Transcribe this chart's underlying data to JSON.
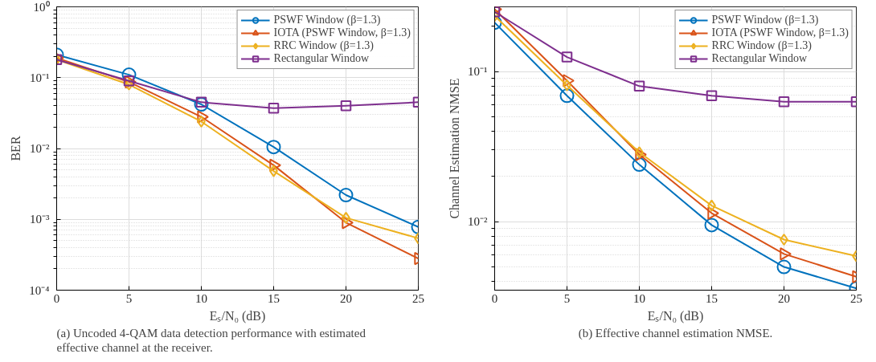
{
  "chart_data": [
    {
      "type": "line",
      "ylabel": "BER",
      "xlabel": "Eₛ/N₀ (dB)",
      "x": [
        0,
        5,
        10,
        15,
        20,
        25
      ],
      "xlim": [
        0,
        25
      ],
      "xticks": [
        0,
        5,
        10,
        15,
        20,
        25
      ],
      "log": "y",
      "ylim": [
        0.0001,
        1
      ],
      "yticks": [
        {
          "value": 0.0001,
          "label": "10⁻⁴"
        },
        {
          "value": 0.001,
          "label": "10⁻³"
        },
        {
          "value": 0.01,
          "label": "10⁻²"
        },
        {
          "value": 0.1,
          "label": "10⁻¹"
        },
        {
          "value": 1,
          "label": "10⁰"
        }
      ],
      "grid": true,
      "legend": "top right",
      "line_style": "solid",
      "annotations": [
        "(a) Uncoded 4-QAM data detection performance with estimated effective channel at the receiver."
      ],
      "series": [
        {
          "name": "PSWF Window (β=1.3)",
          "color": "#0072bd",
          "marker": "circle",
          "values": [
            0.21,
            0.11,
            0.042,
            0.0105,
            0.0022,
            0.00078
          ]
        },
        {
          "name": "IOTA (PSWF Window, β=1.3)",
          "color": "#d95319",
          "marker": "triangle",
          "values": [
            0.19,
            0.087,
            0.028,
            0.0058,
            0.0009,
            0.00028
          ]
        },
        {
          "name": "RRC Window (β=1.3)",
          "color": "#edb120",
          "marker": "diamond",
          "values": [
            0.18,
            0.08,
            0.024,
            0.0048,
            0.00105,
            0.00054
          ]
        },
        {
          "name": "Rectangular Window",
          "color": "#7e2f8e",
          "marker": "square",
          "values": [
            0.18,
            0.09,
            0.045,
            0.037,
            0.04,
            0.045
          ]
        }
      ]
    },
    {
      "type": "line",
      "ylabel": "Channel Estimation NMSE",
      "xlabel": "Eₛ/N₀ (dB)",
      "x": [
        0,
        5,
        10,
        15,
        20,
        25
      ],
      "xlim": [
        0,
        25
      ],
      "xticks": [
        0,
        5,
        10,
        15,
        20,
        25
      ],
      "log": "y",
      "ylim": [
        0.0035,
        0.27
      ],
      "yticks": [
        {
          "value": 0.01,
          "label": "10⁻²"
        },
        {
          "value": 0.1,
          "label": "10⁻¹"
        }
      ],
      "grid": true,
      "legend": "top right",
      "line_style": "solid",
      "annotations": [
        "(b) Effective channel estimation NMSE."
      ],
      "series": [
        {
          "name": "PSWF Window (β=1.3)",
          "color": "#0072bd",
          "marker": "circle",
          "values": [
            0.212,
            0.069,
            0.024,
            0.0095,
            0.005,
            0.0036
          ]
        },
        {
          "name": "IOTA (PSWF Window, β=1.3)",
          "color": "#d95319",
          "marker": "triangle",
          "values": [
            0.26,
            0.087,
            0.028,
            0.0114,
            0.0061,
            0.0043
          ]
        },
        {
          "name": "RRC Window (β=1.3)",
          "color": "#edb120",
          "marker": "diamond",
          "values": [
            0.235,
            0.081,
            0.029,
            0.0128,
            0.0076,
            0.0059
          ]
        },
        {
          "name": "Rectangular Window",
          "color": "#7e2f8e",
          "marker": "square",
          "values": [
            0.25,
            0.125,
            0.08,
            0.069,
            0.063,
            0.063
          ]
        }
      ]
    }
  ]
}
